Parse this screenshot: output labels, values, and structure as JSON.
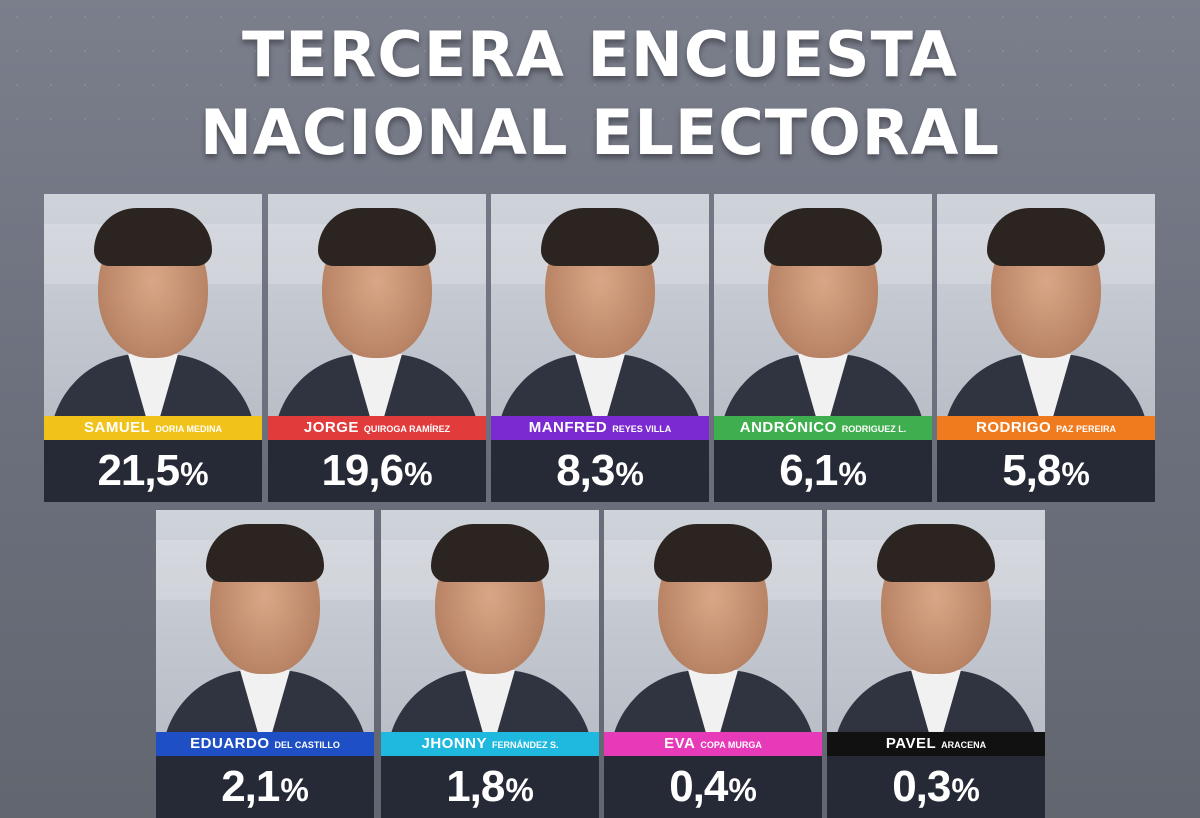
{
  "title": {
    "line1": "TERCERA ENCUESTA",
    "line2": "NACIONAL ELECTORAL"
  },
  "percent_sign": "%",
  "candidates": [
    {
      "first": "SAMUEL",
      "last": "DORIA MEDINA",
      "value": "21,5",
      "color": "#f1c31a"
    },
    {
      "first": "JORGE",
      "last": "QUIROGA RAMÍREZ",
      "value": "19,6",
      "color": "#e23b3b"
    },
    {
      "first": "MANFRED",
      "last": "REYES VILLA",
      "value": "8,3",
      "color": "#7b2ad1"
    },
    {
      "first": "ANDRÓNICO",
      "last": "RODRIGUEZ L.",
      "value": "6,1",
      "color": "#3fae4e"
    },
    {
      "first": "RODRIGO",
      "last": "PAZ PEREIRA",
      "value": "5,8",
      "color": "#f07a1e"
    },
    {
      "first": "EDUARDO",
      "last": "DEL CASTILLO",
      "value": "2,1",
      "color": "#1f4fc4"
    },
    {
      "first": "JHONNY",
      "last": "FERNÁNDEZ S.",
      "value": "1,8",
      "color": "#1fb9e0"
    },
    {
      "first": "EVA",
      "last": "COPA MURGA",
      "value": "0,4",
      "color": "#e63ab8"
    },
    {
      "first": "PAVEL",
      "last": "ARACENA",
      "value": "0,3",
      "color": "#111111"
    }
  ]
}
